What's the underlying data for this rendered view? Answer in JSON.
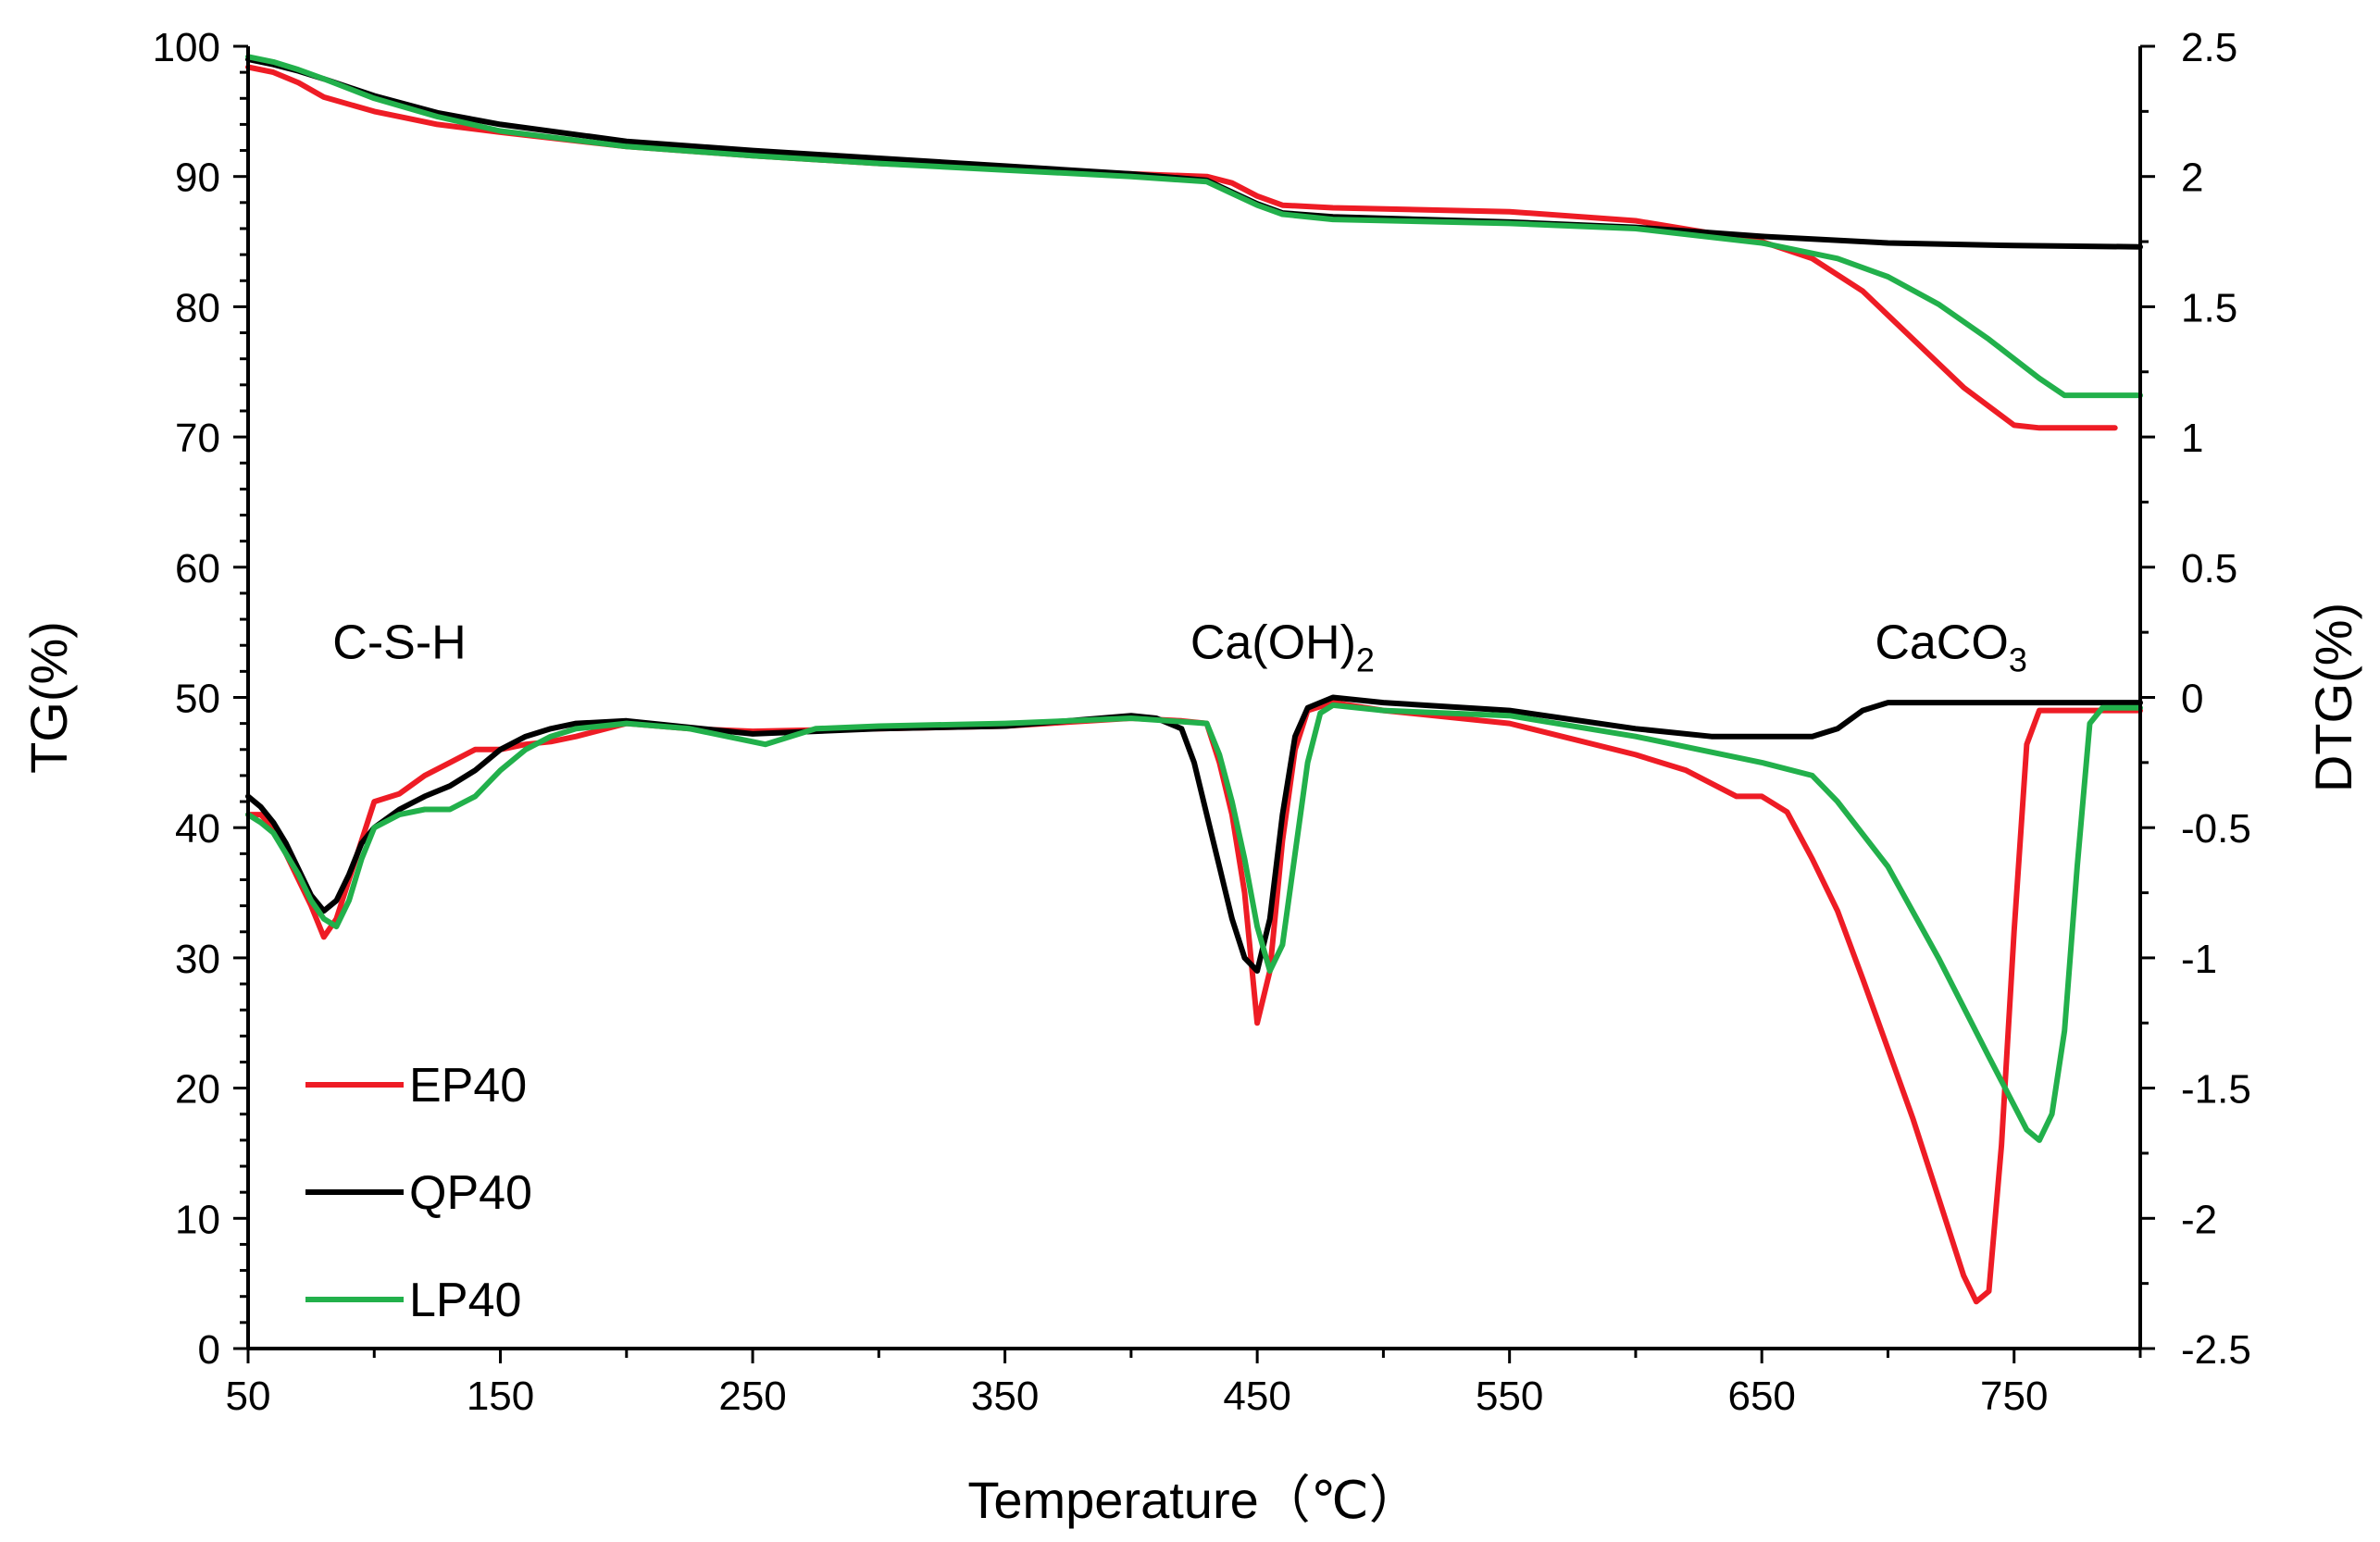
{
  "chart_data": {
    "type": "line",
    "title": "",
    "xlabel": "Temperature（℃）",
    "ylabel_left": "TG(%)",
    "ylabel_right": "DTG(%)",
    "xlim": [
      50,
      800
    ],
    "ylim_left": [
      0,
      100
    ],
    "ylim_right": [
      -2.5,
      2.5
    ],
    "x_ticks": [
      50,
      150,
      250,
      350,
      450,
      550,
      650,
      750
    ],
    "x_tick_labels": [
      "50",
      "150",
      "250",
      "350",
      "450",
      "550",
      "650",
      "750"
    ],
    "y_left_ticks": [
      0,
      10,
      20,
      30,
      40,
      50,
      60,
      70,
      80,
      90,
      100
    ],
    "y_left_tick_labels": [
      "0",
      "10",
      "20",
      "30",
      "40",
      "50",
      "60",
      "70",
      "80",
      "90",
      "100"
    ],
    "y_right_ticks": [
      -2.5,
      -2,
      -1.5,
      -1,
      -0.5,
      0,
      0.5,
      1,
      1.5,
      2,
      2.5
    ],
    "y_right_tick_labels": [
      "-2.5",
      "-2",
      "-1.5",
      "-1",
      "-0.5",
      "0",
      "0.5",
      "1",
      "1.5",
      "2",
      "2.5"
    ],
    "grid": false,
    "legend": {
      "position": "bottom-left",
      "entries": [
        "EP40",
        "QP40",
        "LP40"
      ]
    },
    "annotations": [
      {
        "text": "C-S-H",
        "sub": "",
        "x": 110,
        "y": 53
      },
      {
        "text": "Ca(OH)",
        "sub": "2",
        "x": 460,
        "y": 53
      },
      {
        "text": "CaCO",
        "sub": "3",
        "x": 725,
        "y": 53
      }
    ],
    "series": [
      {
        "name": "EP40",
        "color": "#ee1c25",
        "axis": "left",
        "kind": "TG",
        "x": [
          50,
          60,
          70,
          80,
          100,
          125,
          150,
          200,
          250,
          300,
          350,
          400,
          430,
          440,
          450,
          460,
          480,
          550,
          600,
          650,
          670,
          690,
          710,
          730,
          750,
          760,
          790
        ],
        "y": [
          98.4,
          98.0,
          97.2,
          96.1,
          95.0,
          94.0,
          93.4,
          92.3,
          91.6,
          91.0,
          90.6,
          90.2,
          90.0,
          89.5,
          88.5,
          87.8,
          87.6,
          87.3,
          86.6,
          85.0,
          83.7,
          81.2,
          77.5,
          73.8,
          70.9,
          70.7,
          70.7
        ]
      },
      {
        "name": "QP40",
        "color": "#000000",
        "axis": "left",
        "kind": "TG",
        "x": [
          50,
          60,
          70,
          80,
          100,
          125,
          150,
          200,
          250,
          300,
          350,
          400,
          430,
          440,
          450,
          460,
          480,
          550,
          600,
          650,
          700,
          750,
          800
        ],
        "y": [
          99.0,
          98.6,
          98.1,
          97.5,
          96.2,
          94.9,
          94.0,
          92.7,
          92.0,
          91.4,
          90.8,
          90.2,
          89.7,
          88.8,
          87.9,
          87.2,
          86.9,
          86.5,
          86.1,
          85.4,
          84.9,
          84.7,
          84.6
        ]
      },
      {
        "name": "LP40",
        "color": "#22b04b",
        "axis": "left",
        "kind": "TG",
        "x": [
          50,
          60,
          70,
          80,
          100,
          125,
          150,
          200,
          250,
          300,
          350,
          400,
          430,
          440,
          450,
          460,
          480,
          550,
          600,
          650,
          680,
          700,
          720,
          740,
          760,
          770,
          800
        ],
        "y": [
          99.2,
          98.8,
          98.2,
          97.5,
          96.0,
          94.6,
          93.5,
          92.3,
          91.6,
          91.0,
          90.5,
          90.0,
          89.6,
          88.7,
          87.8,
          87.1,
          86.7,
          86.4,
          86.0,
          84.9,
          83.7,
          82.3,
          80.2,
          77.5,
          74.5,
          73.2,
          73.2
        ]
      },
      {
        "name": "EP40 DTG",
        "color": "#ee1c25",
        "axis": "right",
        "kind": "DTG",
        "x": [
          50,
          55,
          60,
          65,
          70,
          75,
          80,
          85,
          90,
          95,
          100,
          110,
          120,
          130,
          140,
          150,
          160,
          170,
          180,
          200,
          225,
          250,
          300,
          350,
          400,
          420,
          430,
          435,
          440,
          445,
          450,
          455,
          460,
          465,
          470,
          480,
          500,
          550,
          600,
          620,
          640,
          650,
          660,
          670,
          680,
          690,
          700,
          710,
          720,
          730,
          735,
          740,
          745,
          750,
          755,
          760,
          800
        ],
        "y": [
          -0.45,
          -0.45,
          -0.5,
          -0.6,
          -0.7,
          -0.8,
          -0.92,
          -0.85,
          -0.7,
          -0.55,
          -0.4,
          -0.37,
          -0.3,
          -0.25,
          -0.2,
          -0.2,
          -0.18,
          -0.17,
          -0.15,
          -0.1,
          -0.12,
          -0.13,
          -0.12,
          -0.11,
          -0.08,
          -0.09,
          -0.1,
          -0.25,
          -0.45,
          -0.75,
          -1.25,
          -1.05,
          -0.55,
          -0.2,
          -0.05,
          -0.02,
          -0.05,
          -0.1,
          -0.22,
          -0.28,
          -0.38,
          -0.38,
          -0.44,
          -0.62,
          -0.82,
          -1.08,
          -1.35,
          -1.62,
          -1.92,
          -2.22,
          -2.32,
          -2.28,
          -1.72,
          -0.9,
          -0.18,
          -0.05,
          -0.05
        ]
      },
      {
        "name": "QP40 DTG",
        "color": "#000000",
        "axis": "right",
        "kind": "DTG",
        "x": [
          50,
          55,
          60,
          65,
          70,
          75,
          80,
          85,
          90,
          95,
          100,
          110,
          120,
          130,
          140,
          150,
          160,
          170,
          180,
          200,
          250,
          300,
          350,
          400,
          410,
          420,
          425,
          430,
          435,
          440,
          445,
          450,
          455,
          460,
          465,
          470,
          480,
          500,
          550,
          600,
          630,
          650,
          670,
          680,
          690,
          700,
          750,
          800
        ],
        "y": [
          -0.38,
          -0.42,
          -0.48,
          -0.56,
          -0.66,
          -0.76,
          -0.82,
          -0.78,
          -0.68,
          -0.56,
          -0.5,
          -0.43,
          -0.38,
          -0.34,
          -0.28,
          -0.2,
          -0.15,
          -0.12,
          -0.1,
          -0.09,
          -0.14,
          -0.12,
          -0.11,
          -0.07,
          -0.08,
          -0.12,
          -0.25,
          -0.45,
          -0.65,
          -0.85,
          -1.0,
          -1.05,
          -0.85,
          -0.45,
          -0.15,
          -0.04,
          0.0,
          -0.02,
          -0.05,
          -0.12,
          -0.15,
          -0.15,
          -0.15,
          -0.12,
          -0.05,
          -0.02,
          -0.02,
          -0.02
        ]
      },
      {
        "name": "LP40 DTG",
        "color": "#22b04b",
        "axis": "right",
        "kind": "DTG",
        "x": [
          50,
          55,
          60,
          65,
          70,
          75,
          80,
          85,
          90,
          95,
          100,
          110,
          120,
          130,
          140,
          150,
          160,
          170,
          180,
          200,
          225,
          255,
          275,
          300,
          350,
          400,
          430,
          435,
          440,
          445,
          450,
          455,
          460,
          465,
          470,
          475,
          480,
          500,
          550,
          600,
          650,
          670,
          680,
          700,
          720,
          740,
          755,
          760,
          765,
          770,
          775,
          780,
          785,
          800
        ],
        "y": [
          -0.45,
          -0.48,
          -0.52,
          -0.6,
          -0.68,
          -0.78,
          -0.85,
          -0.88,
          -0.78,
          -0.62,
          -0.5,
          -0.45,
          -0.43,
          -0.43,
          -0.38,
          -0.28,
          -0.2,
          -0.15,
          -0.12,
          -0.1,
          -0.12,
          -0.18,
          -0.12,
          -0.11,
          -0.1,
          -0.08,
          -0.1,
          -0.22,
          -0.4,
          -0.62,
          -0.88,
          -1.05,
          -0.95,
          -0.6,
          -0.25,
          -0.06,
          -0.03,
          -0.05,
          -0.07,
          -0.15,
          -0.25,
          -0.3,
          -0.4,
          -0.65,
          -1.0,
          -1.38,
          -1.66,
          -1.7,
          -1.6,
          -1.28,
          -0.65,
          -0.1,
          -0.04,
          -0.04
        ]
      }
    ]
  }
}
